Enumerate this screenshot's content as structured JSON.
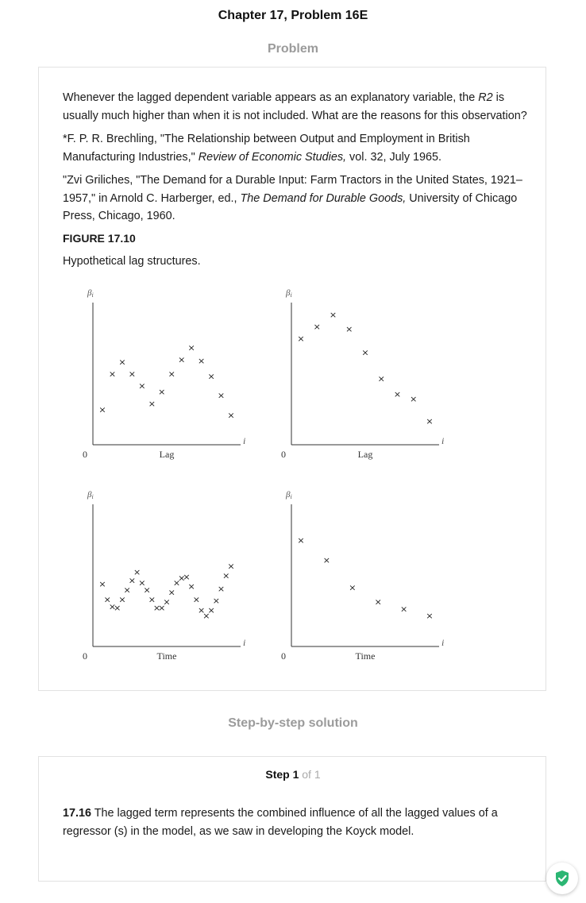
{
  "header": {
    "title": "Chapter 17, Problem 16E"
  },
  "problem": {
    "section_label": "Problem",
    "question_pre": "Whenever the lagged dependent variable appears as an explanatory variable, the ",
    "question_r2": "R2",
    "question_post": " is usually much higher than when it is not included. What are the reasons for this observation?",
    "ref1_pre": "*F. P. R. Brechling, \"The Relationship between Output and Employment in British Manufacturing Industries,\" ",
    "ref1_italic": "Review of Economic Studies,",
    "ref1_post": " vol. 32, July 1965.",
    "ref2_pre": "\"Zvi Griliches, \"The Demand for a Durable Input: Farm Tractors in the United States, 1921–1957,\" in Arnold C. Harberger, ed., ",
    "ref2_italic": "The Demand for Durable Goods,",
    "ref2_post": " University of Chicago Press, Chicago, 1960.",
    "figure_label": "FIGURE 17.10",
    "figure_caption": "Hypothetical lag structures."
  },
  "figure": {
    "y_label": "β",
    "y_sub": "i",
    "x_var": "i",
    "origin": "0",
    "mark_symbol": "×",
    "panels": [
      {
        "xlabel": "Lag",
        "values": [
          3,
          6,
          7,
          6,
          5,
          3.5,
          4.5,
          6,
          7.2,
          8.2,
          7.1,
          5.8,
          4.2,
          2.5
        ]
      },
      {
        "xlabel": "Lag",
        "values": [
          9,
          10,
          11,
          9.8,
          7.8,
          5.6,
          4.3,
          3.9,
          2
        ]
      },
      {
        "xlabel": "Time",
        "values": [
          5.3,
          4,
          3.4,
          3.3,
          4,
          4.8,
          5.6,
          6.3,
          5.4,
          4.8,
          4,
          3.3,
          3.3,
          3.8,
          4.6,
          5.4,
          5.8,
          5.9,
          5.1,
          4,
          3.1,
          2.6,
          3.1,
          3.9,
          4.9,
          6,
          6.8
        ]
      },
      {
        "xlabel": "Time",
        "values": [
          9,
          7.3,
          5,
          3.8,
          3.2,
          2.6
        ]
      }
    ]
  },
  "solution": {
    "section_label": "Step-by-step solution",
    "step_word": "Step 1",
    "step_of": " of 1",
    "answer_number": "17.16",
    "answer_text": " The lagged term represents the combined influence of all the lagged values of a regressor (s) in the model, as we saw in developing the Koyck model."
  },
  "colors": {
    "accent_green": "#2bb673",
    "muted_gray": "#9b9b9b"
  },
  "icons": {
    "badge": "shield-check-icon"
  }
}
